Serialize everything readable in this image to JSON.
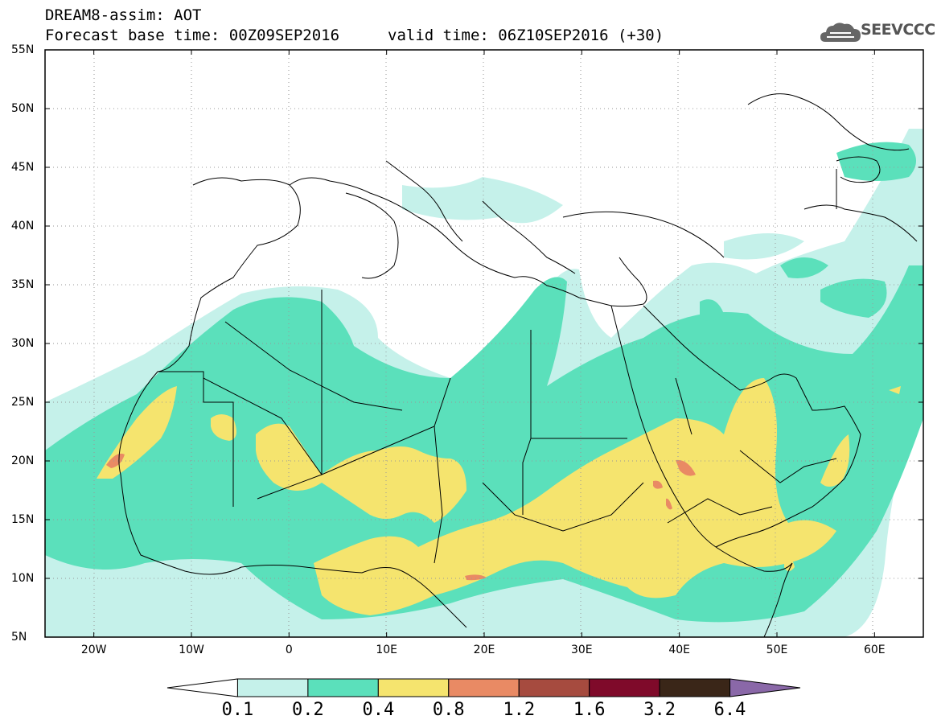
{
  "header": {
    "line1": "DREAM8-assim: AOT",
    "line2": "Forecast base time: 00Z09SEP2016",
    "valid": "valid time: 06Z10SEP2016 (+30)"
  },
  "logo": {
    "text": "SEEVCCC",
    "icon": "cloud-icon"
  },
  "map": {
    "lon_range": [
      -25,
      65
    ],
    "lat_range": [
      5,
      55
    ],
    "x_ticks": [
      "20W",
      "10W",
      "0",
      "10E",
      "20E",
      "30E",
      "40E",
      "50E",
      "60E"
    ],
    "x_tick_values": [
      -20,
      -10,
      0,
      10,
      20,
      30,
      40,
      50,
      60
    ],
    "y_ticks": [
      "55N",
      "50N",
      "45N",
      "40N",
      "35N",
      "30N",
      "25N",
      "20N",
      "15N",
      "10N",
      "5N"
    ],
    "y_tick_values": [
      55,
      50,
      45,
      40,
      35,
      30,
      25,
      20,
      15,
      10,
      5
    ],
    "grid": "dotted"
  },
  "colorbar": {
    "labels": [
      "0.1",
      "0.2",
      "0.4",
      "0.8",
      "1.2",
      "1.6",
      "3.2",
      "6.4"
    ],
    "colors": [
      "#ffffff",
      "#c5f1ea",
      "#5be0bb",
      "#f5e46e",
      "#e98a64",
      "#a64b3f",
      "#7f0a2a",
      "#3a2618",
      "#8a68a8"
    ]
  }
}
